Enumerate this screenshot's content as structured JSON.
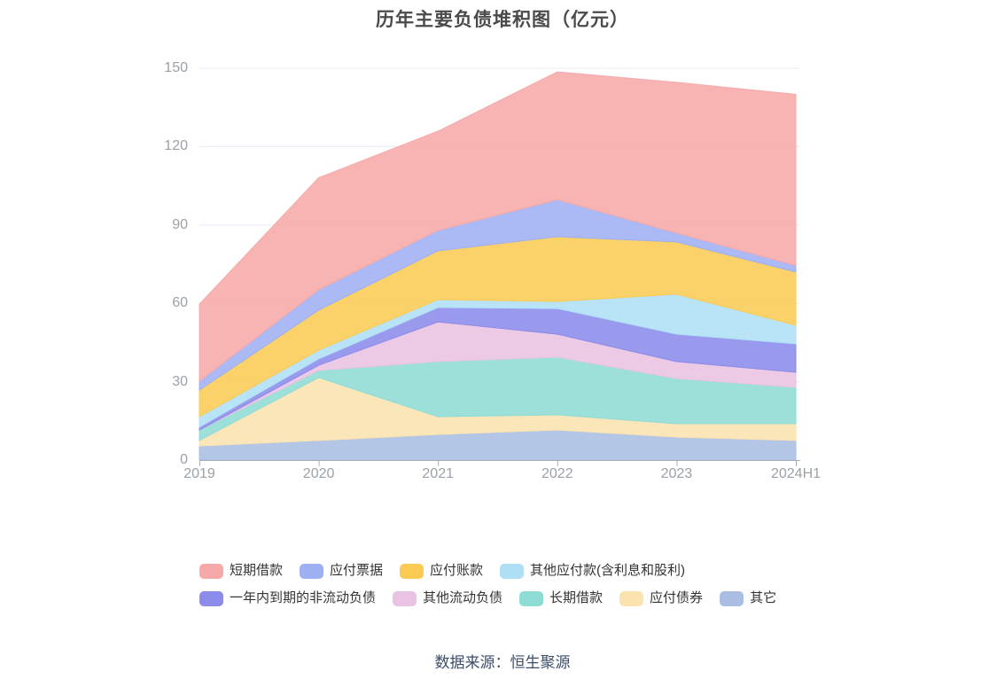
{
  "title": "历年主要负债堆积图（亿元）",
  "footer": {
    "source_label": "数据来源：恒生聚源"
  },
  "colors": {
    "title_text": "#4a4a4a",
    "axis_label": "#9aa1a9",
    "grid_line": "#e5ebf8",
    "axis_line": "#a8aeb8",
    "legend_text": "#333333",
    "footer_text": "#3c4d69"
  },
  "chart_data": {
    "type": "area",
    "stacked": true,
    "title": "历年主要负债堆积图（亿元）",
    "xlabel": "",
    "ylabel": "",
    "ylim": [
      0,
      150
    ],
    "yticks": [
      0,
      30,
      60,
      90,
      120,
      150
    ],
    "grid": true,
    "legend_position": "bottom",
    "categories": [
      "2019",
      "2020",
      "2021",
      "2022",
      "2023",
      "2024H1"
    ],
    "series": [
      {
        "key": "others",
        "name": "其它",
        "color": "#a9bee2",
        "values": [
          5.4,
          7.5,
          9.8,
          11.5,
          8.8,
          7.5
        ]
      },
      {
        "key": "bonds-payable",
        "name": "应付债券",
        "color": "#fbe3b0",
        "values": [
          2.1,
          24.1,
          6.8,
          5.8,
          5.1,
          6.4
        ]
      },
      {
        "key": "long-term-loans",
        "name": "长期借款",
        "color": "#8fdcd5",
        "values": [
          4.0,
          2.7,
          21.1,
          22.1,
          17.3,
          13.9
        ]
      },
      {
        "key": "other-current-liabilities",
        "name": "其他流动负债",
        "color": "#e9c3e3",
        "values": [
          0,
          2.0,
          15.2,
          8.8,
          6.5,
          5.8
        ]
      },
      {
        "key": "non-current-liabilities-due-within-1yr",
        "name": "一年内到期的非流动负债",
        "color": "#8b8bea",
        "values": [
          1.1,
          2.4,
          5.5,
          9.8,
          10.5,
          10.9
        ]
      },
      {
        "key": "other-payables-incl-interest-dividends",
        "name": "其他应付款(含利息和股利)",
        "color": "#afdff5",
        "values": [
          4.0,
          3.4,
          3.0,
          2.7,
          15.3,
          7.1
        ]
      },
      {
        "key": "accounts-payable",
        "name": "应付账款",
        "color": "#fbcb54",
        "values": [
          10.2,
          15.3,
          18.7,
          24.8,
          20.0,
          20.4
        ]
      },
      {
        "key": "notes-payable",
        "name": "应付票据",
        "color": "#9fb0f2",
        "values": [
          3.4,
          7.8,
          7.8,
          14.2,
          3.4,
          2.5
        ]
      },
      {
        "key": "short-term-loans",
        "name": "短期借款",
        "color": "#f7a9a9",
        "values": [
          29.5,
          42.9,
          38.0,
          48.9,
          57.7,
          65.5
        ]
      }
    ],
    "legend_rows": [
      [
        "短期借款",
        "应付票据",
        "应付账款",
        "其他应付款(含利息和股利)"
      ],
      [
        "一年内到期的非流动负债",
        "其他流动负债",
        "长期借款",
        "应付债券",
        "其它"
      ]
    ]
  }
}
